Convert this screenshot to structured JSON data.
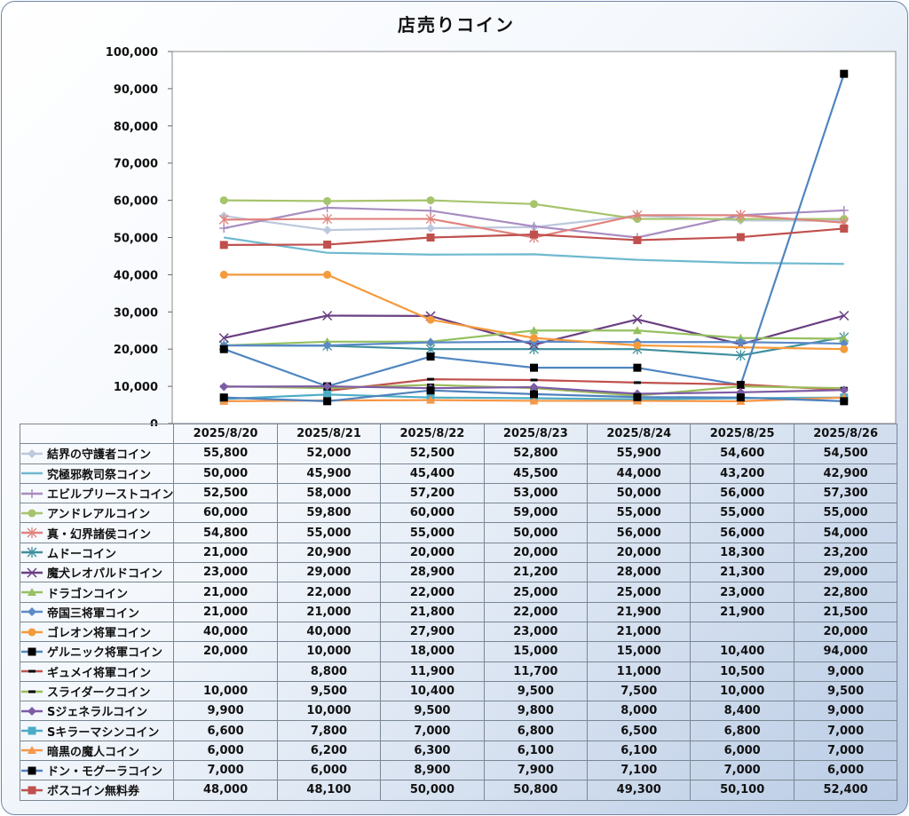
{
  "chart_data": {
    "type": "line",
    "title": "店売りコイン",
    "xlabel": "",
    "ylabel": "",
    "ylim": [
      0,
      100000
    ],
    "yticks": [
      "0",
      "10,000",
      "20,000",
      "30,000",
      "40,000",
      "50,000",
      "60,000",
      "70,000",
      "80,000",
      "90,000",
      "100,000"
    ],
    "categories": [
      "2025/8/20",
      "2025/8/21",
      "2025/8/22",
      "2025/8/23",
      "2025/8/24",
      "2025/8/25",
      "2025/8/26"
    ],
    "grid": false,
    "legend": "table-left",
    "series": [
      {
        "name": "結界の守護者コイン",
        "color": "#bcc8dc",
        "marker": "diamond",
        "values": [
          55800,
          52000,
          52500,
          52800,
          55900,
          54600,
          54500
        ]
      },
      {
        "name": "究極邪教司祭コイン",
        "color": "#6fb9cf",
        "marker": "none",
        "values": [
          50000,
          45900,
          45400,
          45500,
          44000,
          43200,
          42900
        ]
      },
      {
        "name": "エビルプリーストコイン",
        "color": "#a88cc0",
        "marker": "plus",
        "values": [
          52500,
          58000,
          57200,
          53000,
          50000,
          56000,
          57300
        ]
      },
      {
        "name": "アンドレアルコイン",
        "color": "#a6c46c",
        "marker": "circle",
        "values": [
          60000,
          59800,
          60000,
          59000,
          55000,
          55000,
          55000
        ]
      },
      {
        "name": "真・幻界諸侯コイン",
        "color": "#e0837e",
        "marker": "star",
        "values": [
          54800,
          55000,
          55000,
          50000,
          56000,
          56000,
          54000
        ]
      },
      {
        "name": "ムドーコイン",
        "color": "#3d8f9d",
        "marker": "star",
        "values": [
          21000,
          20900,
          20000,
          20000,
          20000,
          18300,
          23200
        ]
      },
      {
        "name": "魔犬レオパルドコイン",
        "color": "#6a3f82",
        "marker": "x",
        "values": [
          23000,
          29000,
          28900,
          21200,
          28000,
          21300,
          29000
        ]
      },
      {
        "name": "ドラゴンコイン",
        "color": "#95c060",
        "marker": "triangle",
        "values": [
          21000,
          22000,
          22000,
          25000,
          25000,
          23000,
          22800
        ]
      },
      {
        "name": "帝国三将軍コイン",
        "color": "#5b89c6",
        "marker": "diamond",
        "values": [
          21000,
          21000,
          21800,
          22000,
          21900,
          21900,
          21500
        ]
      },
      {
        "name": "ゴレオン将軍コイン",
        "color": "#f59a3b",
        "marker": "circle",
        "values": [
          40000,
          40000,
          27900,
          23000,
          21000,
          null,
          20000
        ]
      },
      {
        "name": "ゲルニック将軍コイン",
        "color": "#4f86c0",
        "marker": "square-black",
        "values": [
          20000,
          10000,
          18000,
          15000,
          15000,
          10400,
          94000
        ]
      },
      {
        "name": "ギュメイ将軍コイン",
        "color": "#c0504d",
        "marker": "dash",
        "values": [
          null,
          8800,
          11900,
          11700,
          11000,
          10500,
          9000
        ]
      },
      {
        "name": "スライダークコイン",
        "color": "#9bbb59",
        "marker": "dash",
        "values": [
          10000,
          9500,
          10400,
          9500,
          7500,
          10000,
          9500
        ]
      },
      {
        "name": "Sジェネラルコイン",
        "color": "#7d5ca6",
        "marker": "diamond",
        "values": [
          9900,
          10000,
          9500,
          9800,
          8000,
          8400,
          9000
        ]
      },
      {
        "name": "Sキラーマシンコイン",
        "color": "#4bacc6",
        "marker": "square",
        "values": [
          6600,
          7800,
          7000,
          6800,
          6500,
          6800,
          7000
        ]
      },
      {
        "name": "暗黒の魔人コイン",
        "color": "#f79646",
        "marker": "triangle",
        "values": [
          6000,
          6200,
          6300,
          6100,
          6100,
          6000,
          7000
        ]
      },
      {
        "name": "ドン・モグーラコイン",
        "color": "#4f81bd",
        "marker": "square-black",
        "values": [
          7000,
          6000,
          8900,
          7900,
          7100,
          7000,
          6000
        ]
      },
      {
        "name": "ボスコイン無料券",
        "color": "#c0504d",
        "marker": "square",
        "values": [
          48000,
          48100,
          50000,
          50800,
          49300,
          50100,
          52400
        ]
      }
    ]
  },
  "table": {
    "rows_display": [
      [
        "55,800",
        "52,000",
        "52,500",
        "52,800",
        "55,900",
        "54,600",
        "54,500"
      ],
      [
        "50,000",
        "45,900",
        "45,400",
        "45,500",
        "44,000",
        "43,200",
        "42,900"
      ],
      [
        "52,500",
        "58,000",
        "57,200",
        "53,000",
        "50,000",
        "56,000",
        "57,300"
      ],
      [
        "60,000",
        "59,800",
        "60,000",
        "59,000",
        "55,000",
        "55,000",
        "55,000"
      ],
      [
        "54,800",
        "55,000",
        "55,000",
        "50,000",
        "56,000",
        "56,000",
        "54,000"
      ],
      [
        "21,000",
        "20,900",
        "20,000",
        "20,000",
        "20,000",
        "18,300",
        "23,200"
      ],
      [
        "23,000",
        "29,000",
        "28,900",
        "21,200",
        "28,000",
        "21,300",
        "29,000"
      ],
      [
        "21,000",
        "22,000",
        "22,000",
        "25,000",
        "25,000",
        "23,000",
        "22,800"
      ],
      [
        "21,000",
        "21,000",
        "21,800",
        "22,000",
        "21,900",
        "21,900",
        "21,500"
      ],
      [
        "40,000",
        "40,000",
        "27,900",
        "23,000",
        "21,000",
        "",
        "20,000"
      ],
      [
        "20,000",
        "10,000",
        "18,000",
        "15,000",
        "15,000",
        "10,400",
        "94,000"
      ],
      [
        "",
        "8,800",
        "11,900",
        "11,700",
        "11,000",
        "10,500",
        "9,000"
      ],
      [
        "10,000",
        "9,500",
        "10,400",
        "9,500",
        "7,500",
        "10,000",
        "9,500"
      ],
      [
        "9,900",
        "10,000",
        "9,500",
        "9,800",
        "8,000",
        "8,400",
        "9,000"
      ],
      [
        "6,600",
        "7,800",
        "7,000",
        "6,800",
        "6,500",
        "6,800",
        "7,000"
      ],
      [
        "6,000",
        "6,200",
        "6,300",
        "6,100",
        "6,100",
        "6,000",
        "7,000"
      ],
      [
        "7,000",
        "6,000",
        "8,900",
        "7,900",
        "7,100",
        "7,000",
        "6,000"
      ],
      [
        "48,000",
        "48,100",
        "50,000",
        "50,800",
        "49,300",
        "50,100",
        "52,400"
      ]
    ]
  }
}
